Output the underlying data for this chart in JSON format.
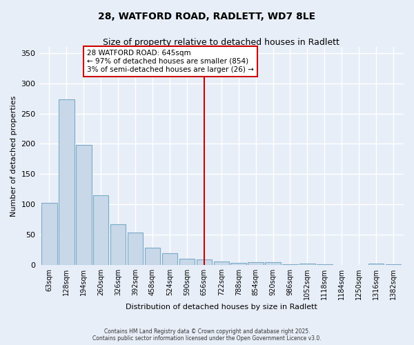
{
  "title_line1": "28, WATFORD ROAD, RADLETT, WD7 8LE",
  "title_line2": "Size of property relative to detached houses in Radlett",
  "xlabel": "Distribution of detached houses by size in Radlett",
  "ylabel": "Number of detached properties",
  "categories": [
    "63sqm",
    "128sqm",
    "194sqm",
    "260sqm",
    "326sqm",
    "392sqm",
    "458sqm",
    "524sqm",
    "590sqm",
    "656sqm",
    "722sqm",
    "788sqm",
    "854sqm",
    "920sqm",
    "986sqm",
    "1052sqm",
    "1118sqm",
    "1184sqm",
    "1250sqm",
    "1316sqm",
    "1382sqm"
  ],
  "values": [
    103,
    273,
    198,
    115,
    67,
    54,
    29,
    19,
    10,
    9,
    6,
    4,
    5,
    5,
    1,
    2,
    1,
    0,
    0,
    2,
    1
  ],
  "bar_color": "#c8d8e8",
  "bar_edge_color": "#7aaac8",
  "vline_x_index": 9.0,
  "vline_color": "#cc0000",
  "annotation_text": "28 WATFORD ROAD: 645sqm\n← 97% of detached houses are smaller (854)\n3% of semi-detached houses are larger (26) →",
  "annotation_box_color": "#ffffff",
  "annotation_box_edge": "#cc0000",
  "ylim": [
    0,
    360
  ],
  "yticks": [
    0,
    50,
    100,
    150,
    200,
    250,
    300,
    350
  ],
  "background_color": "#e8eef8",
  "grid_color": "#d0d8e8",
  "footer_line1": "Contains HM Land Registry data © Crown copyright and database right 2025.",
  "footer_line2": "Contains public sector information licensed under the Open Government Licence v3.0."
}
